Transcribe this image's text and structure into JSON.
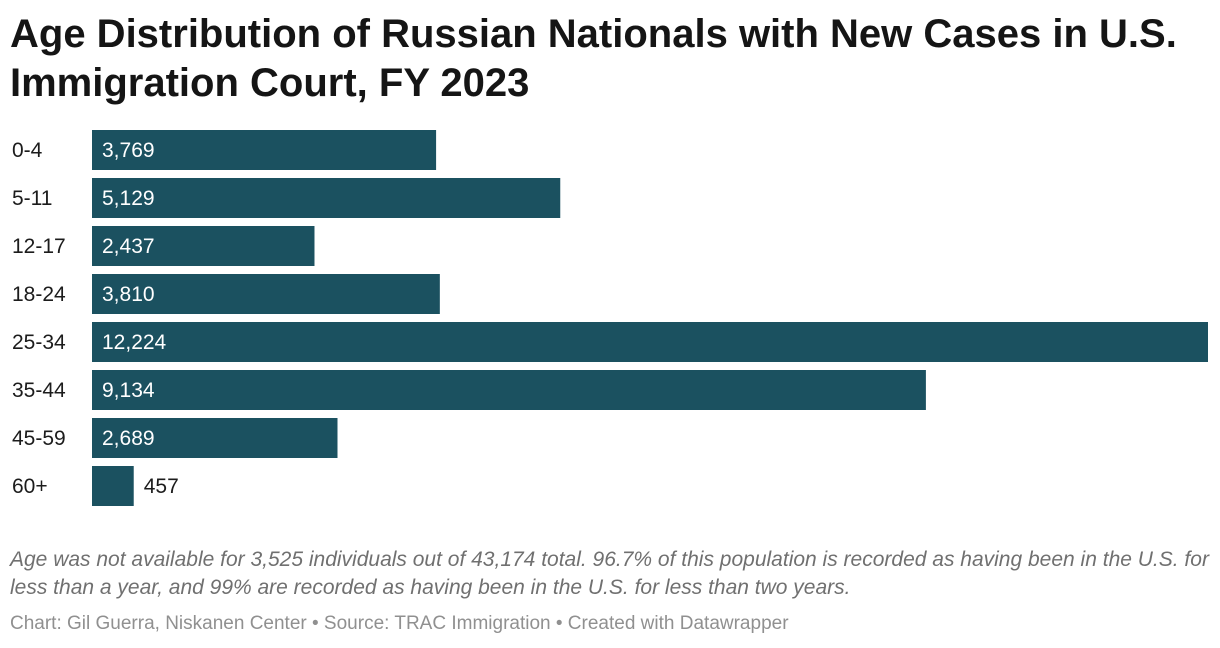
{
  "header": {
    "title": "Age Distribution of Russian Nationals with New Cases in U.S. Immigration Court, FY 2023"
  },
  "chart_data": {
    "type": "bar",
    "orientation": "horizontal",
    "title": "Age Distribution of Russian Nationals with New Cases in U.S. Immigration Court, FY 2023",
    "categories": [
      "0-4",
      "5-11",
      "12-17",
      "18-24",
      "25-34",
      "35-44",
      "45-59",
      "60+"
    ],
    "values": [
      3769,
      5129,
      2437,
      3810,
      12224,
      9134,
      2689,
      457
    ],
    "value_labels": [
      "3,769",
      "5,129",
      "2,437",
      "3,810",
      "12,224",
      "9,134",
      "2,689",
      "457"
    ],
    "bar_color": "#1b5160",
    "xlabel": "",
    "ylabel": "",
    "xlim": [
      0,
      12224
    ],
    "grid": false,
    "legend": "none"
  },
  "footer": {
    "note": "Age was not available for 3,525 individuals out of 43,174 total. 96.7% of this population is recorded as having been in the U.S. for less than a year, and 99% are recorded as having been in the U.S. for less than two years.",
    "credits": "Chart: Gil Guerra, Niskanen Center • Source: TRAC Immigration • Created with Datawrapper"
  }
}
